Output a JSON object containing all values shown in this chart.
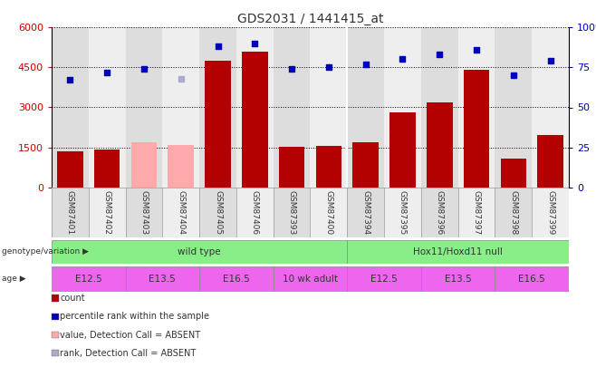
{
  "title": "GDS2031 / 1441415_at",
  "samples": [
    "GSM87401",
    "GSM87402",
    "GSM87403",
    "GSM87404",
    "GSM87405",
    "GSM87406",
    "GSM87393",
    "GSM87400",
    "GSM87394",
    "GSM87395",
    "GSM87396",
    "GSM87397",
    "GSM87398",
    "GSM87399"
  ],
  "counts": [
    1350,
    1430,
    1700,
    1580,
    4750,
    5100,
    1530,
    1570,
    1700,
    2800,
    3200,
    4400,
    1100,
    1950
  ],
  "counts_absent": [
    false,
    false,
    true,
    true,
    false,
    false,
    false,
    false,
    false,
    false,
    false,
    false,
    false,
    false
  ],
  "percentile_ranks": [
    67,
    72,
    74,
    68,
    88,
    90,
    74,
    75,
    77,
    80,
    83,
    86,
    70,
    79
  ],
  "ranks_absent": [
    false,
    false,
    false,
    true,
    false,
    false,
    false,
    false,
    false,
    false,
    false,
    false,
    false,
    false
  ],
  "ylim_left": [
    0,
    6000
  ],
  "ylim_right": [
    0,
    100
  ],
  "yticks_left": [
    0,
    1500,
    3000,
    4500,
    6000
  ],
  "yticks_right": [
    0,
    25,
    50,
    75,
    100
  ],
  "bar_color_normal": "#b30000",
  "bar_color_absent": "#ffaaaa",
  "dot_color_normal": "#0000bb",
  "dot_color_absent": "#aaaacc",
  "background_color": "#ffffff",
  "genotype_groups": [
    {
      "label": "wild type",
      "start": 0,
      "end": 8
    },
    {
      "label": "Hox11/Hoxd11 null",
      "start": 8,
      "end": 14
    }
  ],
  "geno_color": "#88ee88",
  "age_groups": [
    {
      "label": "E12.5",
      "start": 0,
      "end": 2
    },
    {
      "label": "E13.5",
      "start": 2,
      "end": 4
    },
    {
      "label": "E16.5",
      "start": 4,
      "end": 6
    },
    {
      "label": "10 wk adult",
      "start": 6,
      "end": 8
    },
    {
      "label": "E12.5",
      "start": 8,
      "end": 10
    },
    {
      "label": "E13.5",
      "start": 10,
      "end": 12
    },
    {
      "label": "E16.5",
      "start": 12,
      "end": 14
    }
  ],
  "age_color": "#ee66ee",
  "legend_items": [
    {
      "label": "count",
      "color": "#b30000"
    },
    {
      "label": "percentile rank within the sample",
      "color": "#0000bb"
    },
    {
      "label": "value, Detection Call = ABSENT",
      "color": "#ffaaaa"
    },
    {
      "label": "rank, Detection Call = ABSENT",
      "color": "#aaaacc"
    }
  ],
  "tick_label_color_left": "#cc0000",
  "tick_label_color_right": "#0000bb",
  "col_bg_even": "#dddddd",
  "col_bg_odd": "#eeeeee"
}
